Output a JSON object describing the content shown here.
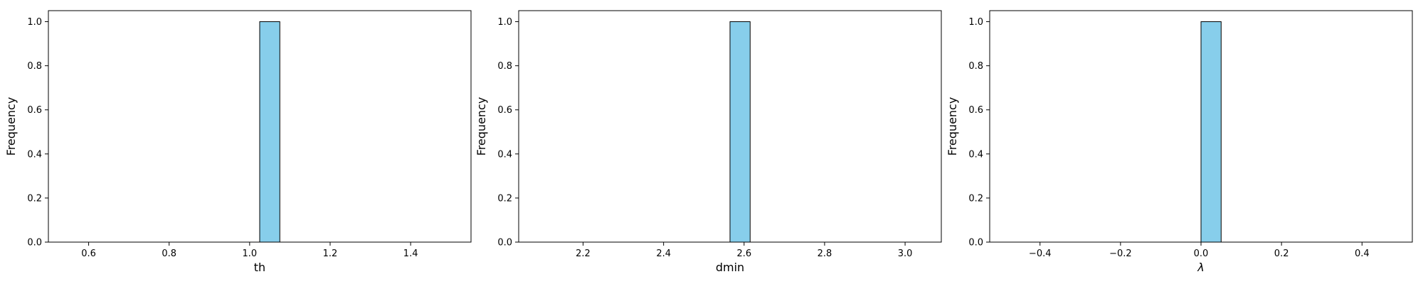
{
  "chart_data": [
    {
      "type": "bar",
      "subtype": "histogram",
      "xlabel": "th",
      "ylabel": "Frequency",
      "xlim": [
        0.5,
        1.55
      ],
      "ylim": [
        0,
        1.05
      ],
      "xticks": [
        0.6,
        0.8,
        1.0,
        1.2,
        1.4
      ],
      "xtick_labels": [
        "0.6",
        "0.8",
        "1.0",
        "1.2",
        "1.4"
      ],
      "yticks": [
        0.0,
        0.2,
        0.4,
        0.6,
        0.8,
        1.0
      ],
      "ytick_labels": [
        "0.0",
        "0.2",
        "0.4",
        "0.6",
        "0.8",
        "1.0"
      ],
      "bins": {
        "start": 0.525,
        "width": 0.05,
        "count": 20
      },
      "values": [
        0,
        0,
        0,
        0,
        0,
        0,
        0,
        0,
        0,
        0,
        1,
        0,
        0,
        0,
        0,
        0,
        0,
        0,
        0,
        0
      ],
      "bar_color": "#87CEEB",
      "edge_color": "#000000",
      "grid": false
    },
    {
      "type": "bar",
      "subtype": "histogram",
      "xlabel": "dmin",
      "ylabel": "Frequency",
      "xlim": [
        2.04,
        3.09
      ],
      "ylim": [
        0,
        1.05
      ],
      "xticks": [
        2.2,
        2.4,
        2.6,
        2.8,
        3.0
      ],
      "xtick_labels": [
        "2.2",
        "2.4",
        "2.6",
        "2.8",
        "3.0"
      ],
      "yticks": [
        0.0,
        0.2,
        0.4,
        0.6,
        0.8,
        1.0
      ],
      "ytick_labels": [
        "0.0",
        "0.2",
        "0.4",
        "0.6",
        "0.8",
        "1.0"
      ],
      "bins": {
        "start": 2.065,
        "width": 0.05,
        "count": 20
      },
      "values": [
        0,
        0,
        0,
        0,
        0,
        0,
        0,
        0,
        0,
        0,
        1,
        0,
        0,
        0,
        0,
        0,
        0,
        0,
        0,
        0
      ],
      "bar_color": "#87CEEB",
      "edge_color": "#000000",
      "grid": false
    },
    {
      "type": "bar",
      "subtype": "histogram",
      "xlabel": "λ",
      "ylabel": "Frequency",
      "xlim": [
        -0.525,
        0.525
      ],
      "ylim": [
        0,
        1.05
      ],
      "xticks": [
        -0.4,
        -0.2,
        0.0,
        0.2,
        0.4
      ],
      "xtick_labels": [
        "−0.4",
        "−0.2",
        "0.0",
        "0.2",
        "0.4"
      ],
      "yticks": [
        0.0,
        0.2,
        0.4,
        0.6,
        0.8,
        1.0
      ],
      "ytick_labels": [
        "0.0",
        "0.2",
        "0.4",
        "0.6",
        "0.8",
        "1.0"
      ],
      "bins": {
        "start": -0.5,
        "width": 0.05,
        "count": 20
      },
      "values": [
        0,
        0,
        0,
        0,
        0,
        0,
        0,
        0,
        0,
        0,
        1,
        0,
        0,
        0,
        0,
        0,
        0,
        0,
        0,
        0
      ],
      "bar_color": "#87CEEB",
      "edge_color": "#000000",
      "grid": false
    }
  ]
}
